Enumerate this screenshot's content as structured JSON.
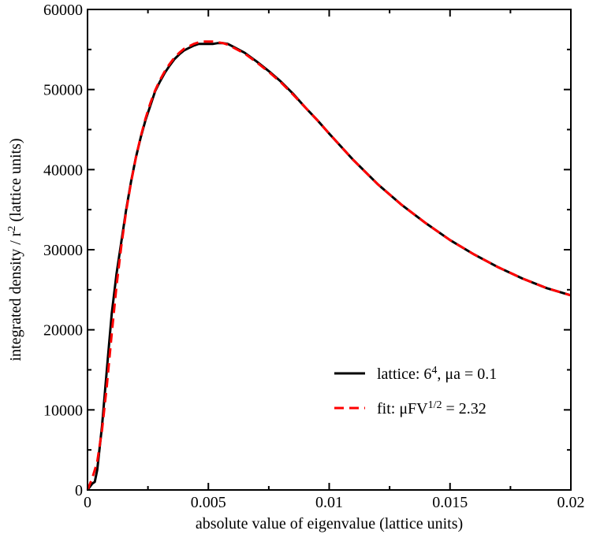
{
  "chart_data": {
    "type": "line",
    "title": "",
    "xlabel": "absolute value of eigenvalue (lattice units)",
    "ylabel": {
      "main": "integrated density / r",
      "sup": "2",
      "tail": " (lattice units)"
    },
    "xlim": [
      0,
      0.02
    ],
    "ylim": [
      0,
      60000
    ],
    "xticks": [
      0,
      0.005,
      0.01,
      0.015,
      0.02
    ],
    "xtick_labels": [
      "0",
      "0.005",
      "0.01",
      "0.015",
      "0.02"
    ],
    "yticks": [
      0,
      10000,
      20000,
      30000,
      40000,
      50000,
      60000
    ],
    "ytick_labels": [
      "0",
      "10000",
      "20000",
      "30000",
      "40000",
      "50000",
      "60000"
    ],
    "grid": false,
    "legend_position": "lower-right",
    "series": [
      {
        "name": "lattice: 6⁴, μa = 0.1",
        "legend": {
          "pre": "lattice: 6",
          "sup": "4",
          "post": ", μa = 0.1"
        },
        "color": "#000000",
        "style": "solid",
        "x": [
          0,
          0.0002,
          0.0003,
          0.0004,
          0.0006,
          0.0008,
          0.001,
          0.0012,
          0.0014,
          0.0016,
          0.0018,
          0.002,
          0.0022,
          0.0024,
          0.0026,
          0.0028,
          0.003,
          0.0032,
          0.0034,
          0.0036,
          0.0038,
          0.004,
          0.0042,
          0.0044,
          0.0046,
          0.0048,
          0.005,
          0.0052,
          0.0054,
          0.0056,
          0.0058,
          0.006,
          0.0065,
          0.007,
          0.0075,
          0.008,
          0.0085,
          0.009,
          0.0095,
          0.01,
          0.011,
          0.012,
          0.013,
          0.014,
          0.015,
          0.016,
          0.017,
          0.018,
          0.019,
          0.02
        ],
        "y": [
          0,
          800,
          1000,
          2500,
          8000,
          15000,
          22000,
          27000,
          31000,
          35000,
          38500,
          41500,
          44000,
          46200,
          48000,
          49800,
          51000,
          52100,
          53000,
          53800,
          54400,
          54900,
          55200,
          55500,
          55700,
          55700,
          55700,
          55700,
          55800,
          55800,
          55700,
          55400,
          54600,
          53500,
          52300,
          51000,
          49500,
          47800,
          46200,
          44500,
          41200,
          38200,
          35600,
          33300,
          31200,
          29400,
          27800,
          26400,
          25200,
          24300
        ]
      },
      {
        "name": "fit: μFV^1/2 = 2.32",
        "legend": {
          "pre": "fit: μFV",
          "sup": "1/2",
          "post": " = 2.32"
        },
        "color": "#ff0000",
        "style": "dashed",
        "x": [
          0,
          0.0002,
          0.0004,
          0.0006,
          0.0008,
          0.001,
          0.0012,
          0.0014,
          0.0016,
          0.0018,
          0.002,
          0.0022,
          0.0024,
          0.0026,
          0.0028,
          0.003,
          0.0032,
          0.0034,
          0.0036,
          0.0038,
          0.004,
          0.0042,
          0.0044,
          0.0046,
          0.0048,
          0.005,
          0.0052,
          0.0054,
          0.0056,
          0.0058,
          0.006,
          0.0065,
          0.007,
          0.0075,
          0.008,
          0.0085,
          0.009,
          0.0095,
          0.01,
          0.011,
          0.012,
          0.013,
          0.014,
          0.015,
          0.016,
          0.017,
          0.018,
          0.019,
          0.02
        ],
        "y": [
          0,
          1500,
          3500,
          7500,
          13000,
          19500,
          25500,
          30500,
          34800,
          38400,
          41500,
          44100,
          46400,
          48300,
          49900,
          51200,
          52300,
          53200,
          54000,
          54600,
          55100,
          55400,
          55700,
          55900,
          56000,
          56000,
          56000,
          55900,
          55800,
          55600,
          55300,
          54500,
          53400,
          52200,
          50900,
          49400,
          47800,
          46200,
          44500,
          41200,
          38200,
          35600,
          33300,
          31200,
          29400,
          27800,
          26400,
          25200,
          24300
        ]
      }
    ]
  }
}
